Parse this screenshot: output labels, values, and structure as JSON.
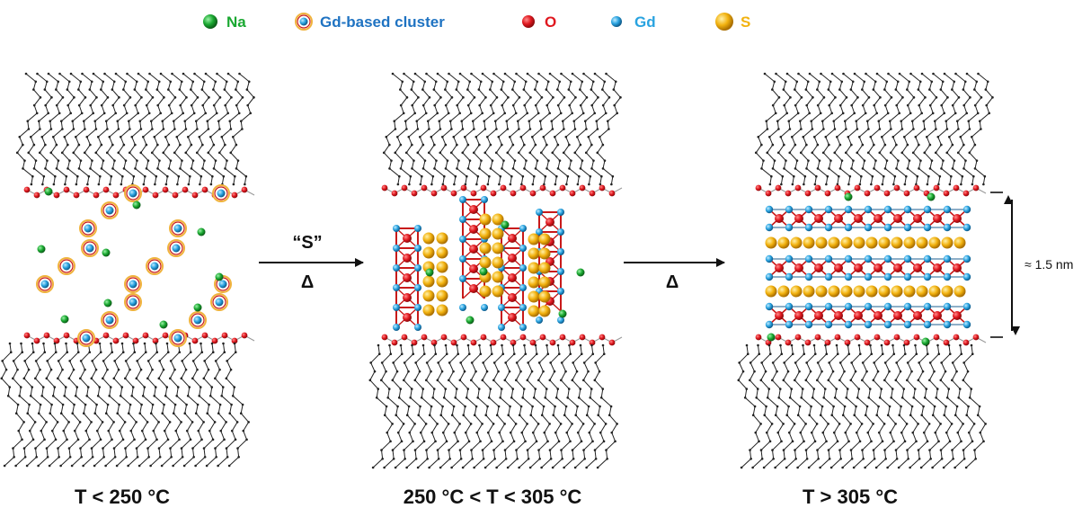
{
  "legend": {
    "items": [
      {
        "key": "na",
        "label": "Na",
        "color": "#1aa831",
        "icon": "green-sphere"
      },
      {
        "key": "cluster",
        "label": "Gd-based cluster",
        "color": "#1f73c2",
        "icon": "ringed-blue-sphere"
      },
      {
        "key": "o",
        "label": "O",
        "color": "#e0181f",
        "icon": "red-sphere"
      },
      {
        "key": "gd",
        "label": "Gd",
        "color": "#29a3e0",
        "icon": "blue-sphere"
      },
      {
        "key": "s",
        "label": "S",
        "color": "#f2b20f",
        "icon": "yellow-sphere"
      }
    ]
  },
  "arrows": {
    "first_top": "“S”",
    "first_bottom": "Δ",
    "second_bottom": "Δ"
  },
  "dimension": {
    "label": "≈ 1.5 nm"
  },
  "stages": [
    {
      "label": "T < 250 °C"
    },
    {
      "label": "250 °C < T < 305 °C"
    },
    {
      "label": "T > 305 °C"
    }
  ],
  "colors": {
    "chain": "#222222",
    "oxygen": "#e0181f",
    "gadolinium": "#29a3e0",
    "sodium": "#1aa831",
    "sulfur": "#f2b20f",
    "cluster_ring": "#f0b33c"
  }
}
